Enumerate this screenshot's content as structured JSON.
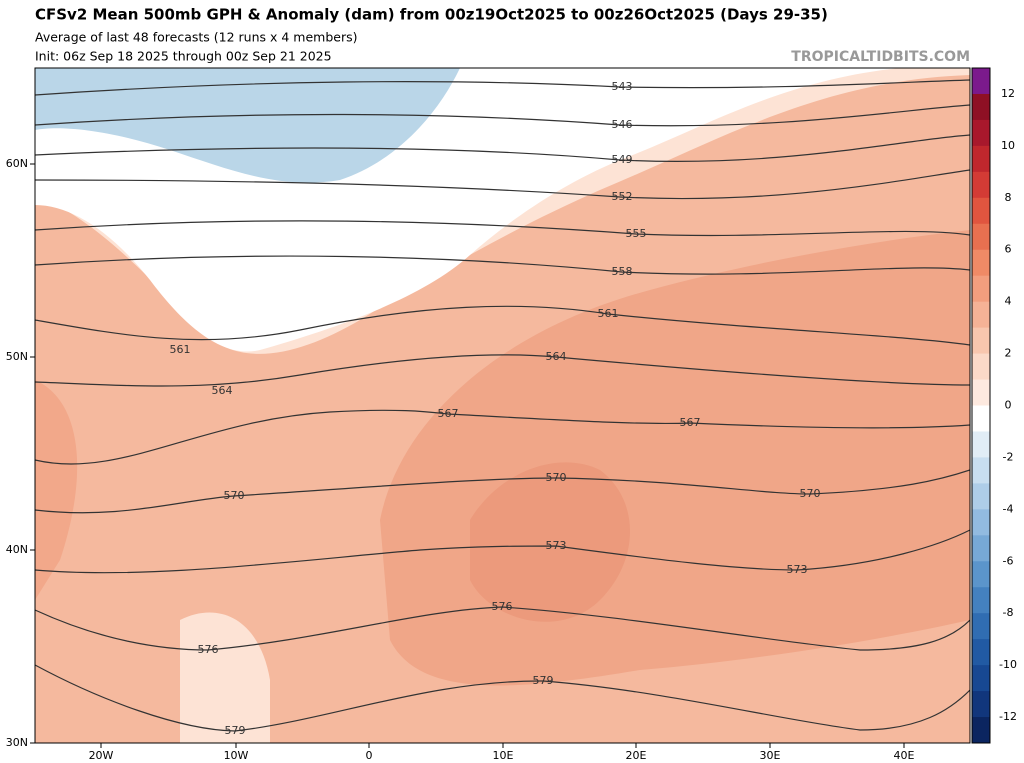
{
  "header": {
    "title": "CFSv2 Mean 500mb GPH & Anomaly (dam) from 00z19Oct2025 to 00z26Oct2025 (Days 29-35)",
    "subtitle": "Average of last 48 forecasts (12 runs x 4 members)",
    "init": "Init: 06z Sep 18 2025 through 00z Sep 21 2025",
    "watermark": "TROPICALTIDBITS.COM"
  },
  "map": {
    "lat_labels": [
      "60N",
      "50N",
      "40N",
      "30N"
    ],
    "lon_labels": [
      "20W",
      "10W",
      "0",
      "10E",
      "20E",
      "30E",
      "40E"
    ],
    "contour_labels": [
      "543",
      "546",
      "549",
      "552",
      "555",
      "558",
      "561",
      "561",
      "564",
      "564",
      "567",
      "567",
      "570",
      "570",
      "570",
      "573",
      "573",
      "576",
      "576",
      "579",
      "579"
    ]
  },
  "colorbar": {
    "labels": [
      "12",
      "10",
      "8",
      "6",
      "4",
      "2",
      "0",
      "-2",
      "-4",
      "-6",
      "-8",
      "-10",
      "-12"
    ]
  }
}
